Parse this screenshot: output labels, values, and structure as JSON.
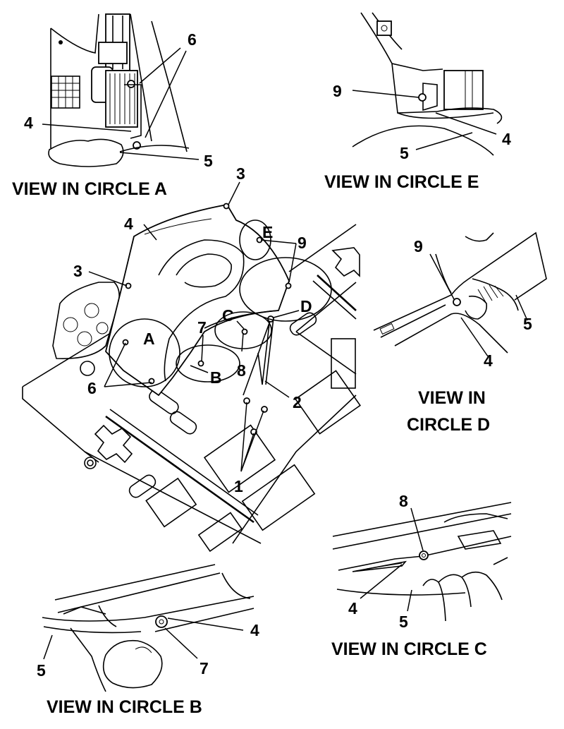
{
  "views": {
    "a": {
      "caption": "VIEW IN CIRCLE  A",
      "callouts": [
        "6",
        "4",
        "5"
      ]
    },
    "b": {
      "caption": "VIEW IN CIRCLE  B",
      "callouts": [
        "4",
        "5",
        "7"
      ]
    },
    "c": {
      "caption": "VIEW IN CIRCLE  C",
      "callouts": [
        "8",
        "4",
        "5"
      ]
    },
    "d": {
      "caption_line1": "VIEW IN",
      "caption_line2": "CIRCLE  D",
      "callouts": [
        "9",
        "5",
        "4"
      ]
    },
    "e": {
      "caption": "VIEW IN CIRCLE  E",
      "callouts": [
        "9",
        "4",
        "5"
      ]
    }
  },
  "main": {
    "callouts": {
      "n3_top": "3",
      "n4": "4",
      "n3_left": "3",
      "n9": "9",
      "nE": "E",
      "nD": "D",
      "nC": "C",
      "n7": "7",
      "nA": "A",
      "n8": "8",
      "nB": "B",
      "n6": "6",
      "n2": "2",
      "n1": "1"
    }
  }
}
